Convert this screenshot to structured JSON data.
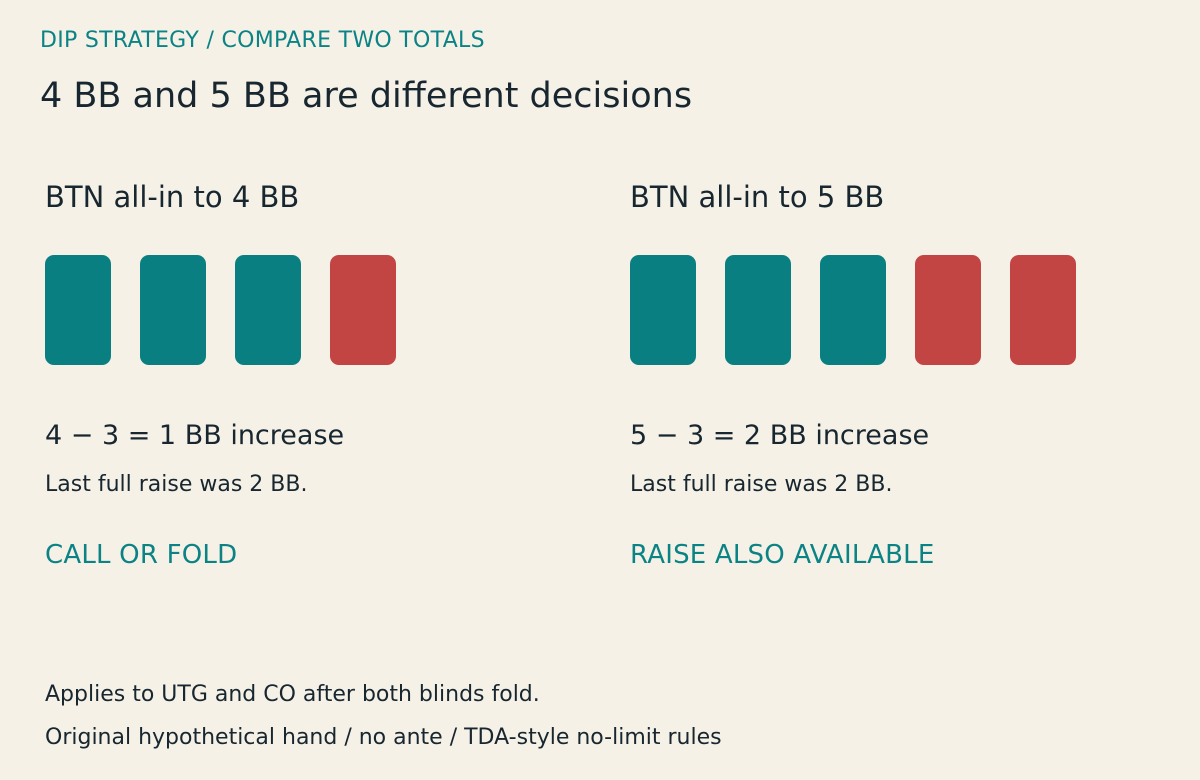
{
  "header": {
    "eyebrow": "DIP STRATEGY / COMPARE TWO TOTALS",
    "headline": "4 BB and 5 BB are different decisions"
  },
  "panels": [
    {
      "title": "BTN all-in to 4 BB",
      "chips": [
        "teal",
        "teal",
        "teal",
        "red"
      ],
      "equation": "4 − 3 = 1 BB increase",
      "note": "Last full raise was 2 BB.",
      "verdict": "CALL OR FOLD"
    },
    {
      "title": "BTN all-in to 5 BB",
      "chips": [
        "teal",
        "teal",
        "teal",
        "red",
        "red"
      ],
      "equation": "5 − 3 = 2 BB increase",
      "note": "Last full raise was 2 BB.",
      "verdict": "RAISE ALSO AVAILABLE"
    }
  ],
  "footer": {
    "line1": "Applies to UTG and CO after both blinds fold.",
    "line2": "Original hypothetical hand / no ante / TDA-style no-limit rules"
  },
  "colors": {
    "background": "#f5f1e7",
    "accent_teal": "#0a7f81",
    "increase_red": "#c24443",
    "text": "#17262f"
  }
}
